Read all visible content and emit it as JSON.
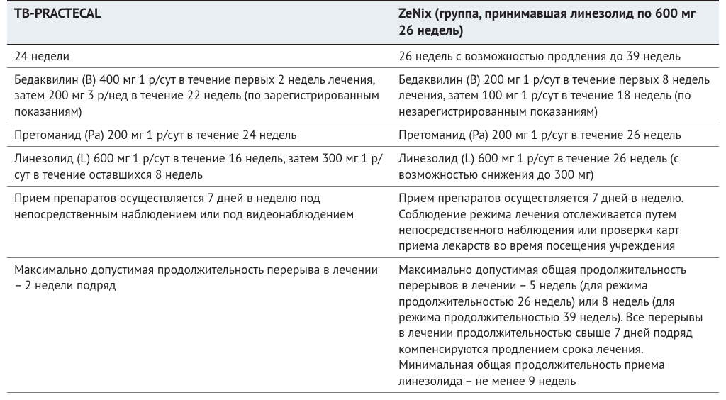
{
  "table": {
    "type": "table",
    "background_color": "#ffffff",
    "header_background": "#e9eef2",
    "border_color_heavy": "#231f20",
    "border_color_light": "#7a7a7a",
    "text_color": "#231f20",
    "header_fontsize_pt": 14,
    "body_fontsize_pt": 13,
    "column_widths_pct": [
      54,
      46
    ],
    "columns": [
      "TB-PRACTECAL",
      "ZeNix (группа, принимавшая линезолид по 600 мг 26 недель)"
    ],
    "rows": [
      [
        "24 недели",
        "26 недель с возможностью продления до 39 недель"
      ],
      [
        "Бедаквилин (B) 400 мг 1 р/сут в течение первых 2 недель лечения, затем 200 мг 3 р/нед в течение 22 недель (по зарегистрированным показаниям)",
        "Бедаквилин (B) 200 мг 1 р/сут в течение первых 8 недель лечения, затем 100 мг 1 р/сут в течение 18 недель (по незарегистрированным показаниям)"
      ],
      [
        "Претоманид (Pa) 200 мг 1 р/сут в течение 24 недель",
        "Претоманид (Pa) 200 мг 1 р/сут в течение 26 недель"
      ],
      [
        "Линезолид (L) 600 мг 1 р/сут в течение 16 недель, затем 300 мг 1 р/сут в течение оставшихся 8 недель",
        "Линезолид (L) 600 мг 1 р/сут в течение 26 недель (с возможностью снижения до 300 мг)"
      ],
      [
        "Прием препаратов осуществляется 7 дней в неделю под непосредственным наблюдением или под видеонаблюдением",
        "Прием препаратов осуществляется 7 дней в неделю. Соблюдение режима лечения отслеживается путем непосредственного наблюдения или проверки карт приема лекарств во время посещения учреждения"
      ],
      [
        "Максимально допустимая продолжительность перерыва в лечении – 2 недели подряд",
        "Максимально допустимая общая продолжительность перерывов в лечении – 5 недель (для режима продолжительностью 26 недель) или 8 недель (для режима продолжительностью 39 недель). Все перерывы в лечении продолжительностью свыше 7 дней подряд компенсируются продлением срока лечения. Минимальная общая продолжительность приема линезолида – не менее 9 недель"
      ]
    ]
  }
}
